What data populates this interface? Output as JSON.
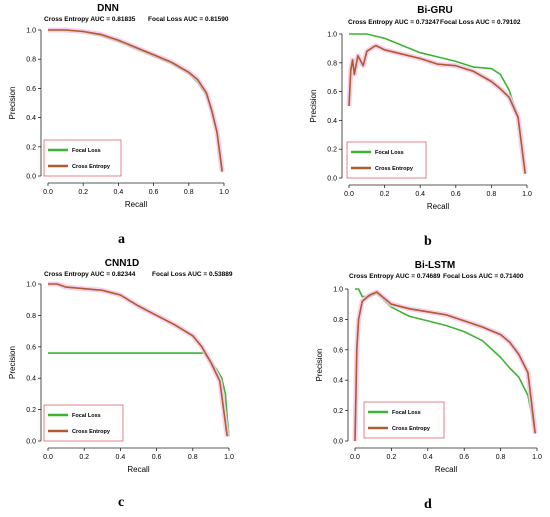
{
  "colors": {
    "focal": "#3DB335",
    "cross": "#B05A30",
    "cross_shadow": "#F2C8E6",
    "axis": "#222222"
  },
  "panel_letters": [
    "a",
    "b",
    "c",
    "d"
  ],
  "chart_data": [
    {
      "type": "line",
      "title": "DNN",
      "auc_left": "Cross Entropy AUC = 0.81835",
      "auc_right": "Focal Loss AUC = 0.81590",
      "xlabel": "Recall",
      "ylabel": "Precision",
      "xlim": [
        0,
        1
      ],
      "ylim": [
        0,
        1
      ],
      "xticks": [
        "0.0",
        "0.2",
        "0.4",
        "0.6",
        "0.8",
        "1.0"
      ],
      "yticks": [
        "0.0",
        "0.2",
        "0.4",
        "0.6",
        "0.8",
        "1.0"
      ],
      "legend": [
        "Focal Loss",
        "Cross Entropy"
      ],
      "legend_position": "bottom-left",
      "series": [
        {
          "name": "Focal Loss",
          "x": [
            0,
            0.1,
            0.2,
            0.3,
            0.4,
            0.5,
            0.6,
            0.7,
            0.8,
            0.85,
            0.9,
            0.93,
            0.96,
            0.99
          ],
          "y": [
            1.0,
            1.0,
            0.99,
            0.96,
            0.92,
            0.87,
            0.82,
            0.77,
            0.7,
            0.64,
            0.55,
            0.44,
            0.3,
            0.03
          ]
        },
        {
          "name": "Cross Entropy",
          "x": [
            0,
            0.1,
            0.2,
            0.3,
            0.4,
            0.5,
            0.6,
            0.7,
            0.8,
            0.85,
            0.9,
            0.93,
            0.96,
            0.99
          ],
          "y": [
            1.0,
            1.0,
            0.99,
            0.97,
            0.93,
            0.88,
            0.83,
            0.78,
            0.71,
            0.66,
            0.57,
            0.45,
            0.3,
            0.03
          ]
        }
      ]
    },
    {
      "type": "line",
      "title": "Bi-GRU",
      "auc_left": "Cross Entropy AUC = 0.73247",
      "auc_right": "Focal Loss AUC = 0.79102",
      "xlabel": "Recall",
      "ylabel": "Precision",
      "xlim": [
        0,
        1
      ],
      "ylim": [
        0,
        1
      ],
      "xticks": [
        "0.0",
        "0.2",
        "0.4",
        "0.6",
        "0.8",
        "1.0"
      ],
      "yticks": [
        "0.0",
        "0.2",
        "0.4",
        "0.6",
        "0.8",
        "1.0"
      ],
      "legend": [
        "Focal Loss",
        "Cross Entropy"
      ],
      "legend_position": "bottom-left",
      "series": [
        {
          "name": "Focal Loss",
          "x": [
            0,
            0.05,
            0.1,
            0.2,
            0.3,
            0.4,
            0.5,
            0.6,
            0.7,
            0.8,
            0.85,
            0.9,
            0.95,
            0.99
          ],
          "y": [
            1.0,
            1.0,
            1.0,
            0.97,
            0.92,
            0.87,
            0.84,
            0.81,
            0.77,
            0.76,
            0.72,
            0.61,
            0.42,
            0.03
          ]
        },
        {
          "name": "Cross Entropy",
          "x": [
            0,
            0.01,
            0.02,
            0.03,
            0.05,
            0.08,
            0.1,
            0.15,
            0.2,
            0.3,
            0.4,
            0.5,
            0.6,
            0.7,
            0.8,
            0.85,
            0.9,
            0.95,
            0.99
          ],
          "y": [
            0.5,
            0.75,
            0.82,
            0.72,
            0.85,
            0.78,
            0.88,
            0.92,
            0.89,
            0.86,
            0.83,
            0.79,
            0.78,
            0.74,
            0.67,
            0.62,
            0.56,
            0.42,
            0.03
          ]
        }
      ]
    },
    {
      "type": "line",
      "title": "CNN1D",
      "auc_left": "Cross Entropy AUC = 0.82344",
      "auc_right": "Focal Loss AUC = 0.53889",
      "xlabel": "Recall",
      "ylabel": "Precision",
      "xlim": [
        0,
        1
      ],
      "ylim": [
        0,
        1
      ],
      "xticks": [
        "0.0",
        "0.2",
        "0.4",
        "0.6",
        "0.8",
        "1.0"
      ],
      "yticks": [
        "0.0",
        "0.2",
        "0.4",
        "0.6",
        "0.8",
        "1.0"
      ],
      "legend": [
        "Focal Loss",
        "Cross Entropy"
      ],
      "legend_position": "bottom-left",
      "series": [
        {
          "name": "Focal Loss",
          "x": [
            0,
            0.86,
            0.88,
            0.9,
            0.93,
            0.96,
            0.98,
            0.99,
            1.0
          ],
          "y": [
            0.56,
            0.56,
            0.53,
            0.5,
            0.46,
            0.4,
            0.3,
            0.15,
            0.03
          ]
        },
        {
          "name": "Cross Entropy",
          "x": [
            0,
            0.05,
            0.1,
            0.2,
            0.3,
            0.4,
            0.5,
            0.6,
            0.7,
            0.8,
            0.85,
            0.9,
            0.95,
            0.99
          ],
          "y": [
            1.0,
            1.0,
            0.98,
            0.97,
            0.96,
            0.93,
            0.86,
            0.8,
            0.74,
            0.67,
            0.6,
            0.5,
            0.38,
            0.03
          ]
        }
      ]
    },
    {
      "type": "line",
      "title": "Bi-LSTM",
      "auc_left": "Cross Entropy AUC = 0.74689",
      "auc_right": "Focal Loss AUC = 0.71400",
      "xlabel": "Recall",
      "ylabel": "Precision",
      "xlim": [
        0,
        1
      ],
      "ylim": [
        0,
        1
      ],
      "xticks": [
        "0.0",
        "0.2",
        "0.4",
        "0.6",
        "0.8",
        "1.0"
      ],
      "yticks": [
        "0.0",
        "0.2",
        "0.4",
        "0.6",
        "0.8",
        "1.0"
      ],
      "legend": [
        "Focal Loss",
        "Cross Entropy"
      ],
      "legend_position": "bottom-left",
      "series": [
        {
          "name": "Focal Loss",
          "x": [
            0,
            0.02,
            0.04,
            0.08,
            0.12,
            0.2,
            0.3,
            0.4,
            0.5,
            0.6,
            0.7,
            0.8,
            0.85,
            0.9,
            0.95,
            0.99
          ],
          "y": [
            1.0,
            1.0,
            0.95,
            0.95,
            0.97,
            0.88,
            0.82,
            0.79,
            0.76,
            0.72,
            0.66,
            0.55,
            0.48,
            0.42,
            0.3,
            0.05
          ]
        },
        {
          "name": "Cross Entropy",
          "x": [
            0,
            0.01,
            0.02,
            0.04,
            0.08,
            0.12,
            0.2,
            0.3,
            0.4,
            0.5,
            0.6,
            0.7,
            0.8,
            0.85,
            0.9,
            0.95,
            0.99
          ],
          "y": [
            0.0,
            0.6,
            0.8,
            0.92,
            0.96,
            0.98,
            0.9,
            0.87,
            0.85,
            0.83,
            0.79,
            0.75,
            0.7,
            0.65,
            0.57,
            0.45,
            0.05
          ]
        }
      ]
    }
  ]
}
